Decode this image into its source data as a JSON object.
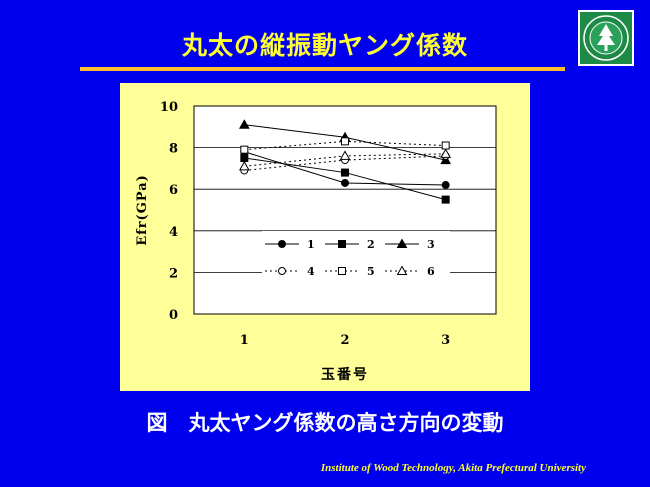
{
  "slide": {
    "title": "丸太の縦振動ヤング係数",
    "caption": "図　丸太ヤング係数の高さ方向の変動",
    "footer": "Institute of Wood Technology, Akita Prefectural University"
  },
  "colors": {
    "background": "#0000ee",
    "title": "#ffff33",
    "rule": "#ffbf2e",
    "chart_bg": "#ffff99"
  },
  "logo": {
    "icon": "tree-emblem-icon"
  },
  "chart_data": {
    "type": "line",
    "title": "",
    "xlabel": "玉番号",
    "ylabel": "Efr(GPa)",
    "ylim": [
      0,
      10
    ],
    "yticks": [
      0,
      2,
      4,
      6,
      8,
      10
    ],
    "x": [
      1,
      2,
      3
    ],
    "xticks": [
      1,
      2,
      3
    ],
    "grid": "horizontal",
    "legend_position": "center",
    "series": [
      {
        "name": "1",
        "values": [
          7.8,
          6.3,
          6.2
        ],
        "marker": "circle",
        "filled": true,
        "dash": false
      },
      {
        "name": "2",
        "values": [
          7.5,
          6.8,
          5.5
        ],
        "marker": "square",
        "filled": true,
        "dash": false
      },
      {
        "name": "3",
        "values": [
          9.1,
          8.5,
          7.4
        ],
        "marker": "triangle",
        "filled": true,
        "dash": false
      },
      {
        "name": "4",
        "values": [
          6.9,
          7.4,
          7.6
        ],
        "marker": "circle",
        "filled": false,
        "dash": true
      },
      {
        "name": "5",
        "values": [
          7.9,
          8.3,
          8.1
        ],
        "marker": "square",
        "filled": false,
        "dash": true
      },
      {
        "name": "6",
        "values": [
          7.1,
          7.6,
          7.7
        ],
        "marker": "triangle",
        "filled": false,
        "dash": true
      }
    ]
  }
}
